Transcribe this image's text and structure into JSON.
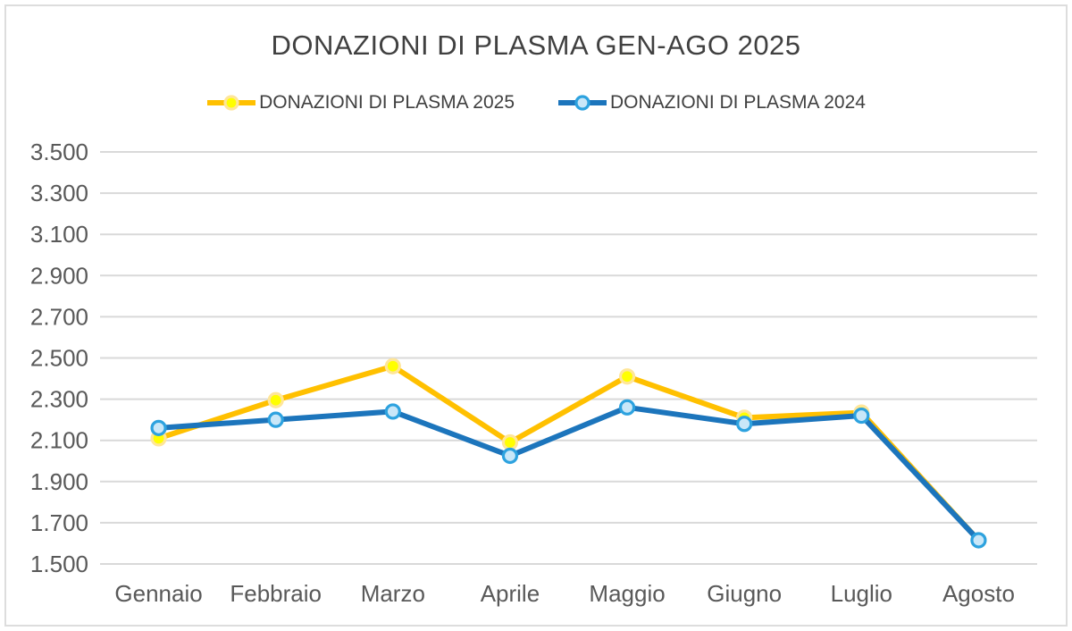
{
  "window": {
    "background": "#ffffff",
    "frame_border_color": "#dddddd"
  },
  "chart_data": {
    "type": "line",
    "title": "DONAZIONI DI PLASMA GEN-AGO 2025",
    "categories": [
      "Gennaio",
      "Febbraio",
      "Marzo",
      "Aprile",
      "Maggio",
      "Giugno",
      "Luglio",
      "Agosto"
    ],
    "series": [
      {
        "name": "DONAZIONI DI PLASMA 2025",
        "values": [
          2110,
          2295,
          2460,
          2090,
          2410,
          2210,
          2235,
          1615
        ],
        "line_color": "#FFC000",
        "marker_fill": "#FFFF00",
        "marker_border": "#FFE699"
      },
      {
        "name": "DONAZIONI DI PLASMA 2024",
        "values": [
          2160,
          2200,
          2240,
          2025,
          2260,
          2180,
          2220,
          1615
        ],
        "line_color": "#1C75BC",
        "marker_fill": "#C9E7F8",
        "marker_border": "#2DA2DF"
      }
    ],
    "ylim": [
      1500,
      3500
    ],
    "ytick_step": 200,
    "ytick_labels_top_to_bottom": [
      "3.500",
      "3.300",
      "3.100",
      "2.900",
      "2.700",
      "2.500",
      "2.300",
      "2.100",
      "1.900",
      "1.700",
      "1.500"
    ],
    "grid": true,
    "gridline_color": "#D9D9D9",
    "axis_text_color": "#595959",
    "legend_position": "top",
    "xlabel": "",
    "ylabel": ""
  }
}
